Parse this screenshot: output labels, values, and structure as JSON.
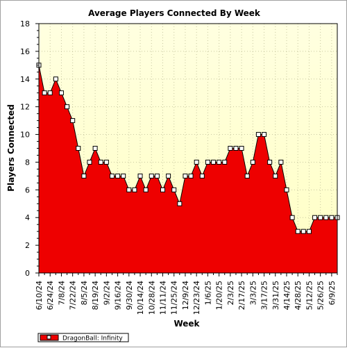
{
  "chart_data": {
    "type": "area",
    "title": "Average Players Connected By Week",
    "xlabel": "Week",
    "ylabel": "Players Connected",
    "ylim": [
      0,
      18
    ],
    "yticks": [
      0,
      2,
      4,
      6,
      8,
      10,
      12,
      14,
      16,
      18
    ],
    "grid": true,
    "legend_position": "bottom-left",
    "x_tick_labels": [
      "6/10/24",
      "6/24/24",
      "7/8/24",
      "7/22/24",
      "8/5/24",
      "8/19/24",
      "9/2/24",
      "9/16/24",
      "9/30/24",
      "10/14/24",
      "10/28/24",
      "11/11/24",
      "11/25/24",
      "12/9/24",
      "12/23/24",
      "1/6/25",
      "1/20/25",
      "2/3/25",
      "2/17/25",
      "3/3/25",
      "3/17/25",
      "3/31/25",
      "4/14/25",
      "4/28/25",
      "5/12/25",
      "5/26/25",
      "6/9/25"
    ],
    "series": [
      {
        "name": "DragonBall: Infinity",
        "color": "#ee0000",
        "values": [
          15,
          13,
          13,
          14,
          13,
          12,
          11,
          9,
          7,
          8,
          9,
          8,
          8,
          7,
          7,
          7,
          6,
          6,
          7,
          6,
          7,
          7,
          6,
          7,
          6,
          5,
          7,
          7,
          8,
          7,
          8,
          8,
          8,
          8,
          9,
          9,
          9,
          7,
          8,
          10,
          10,
          8,
          7,
          8,
          6,
          4,
          3,
          3,
          3,
          4,
          4,
          4,
          4,
          4
        ]
      }
    ]
  }
}
